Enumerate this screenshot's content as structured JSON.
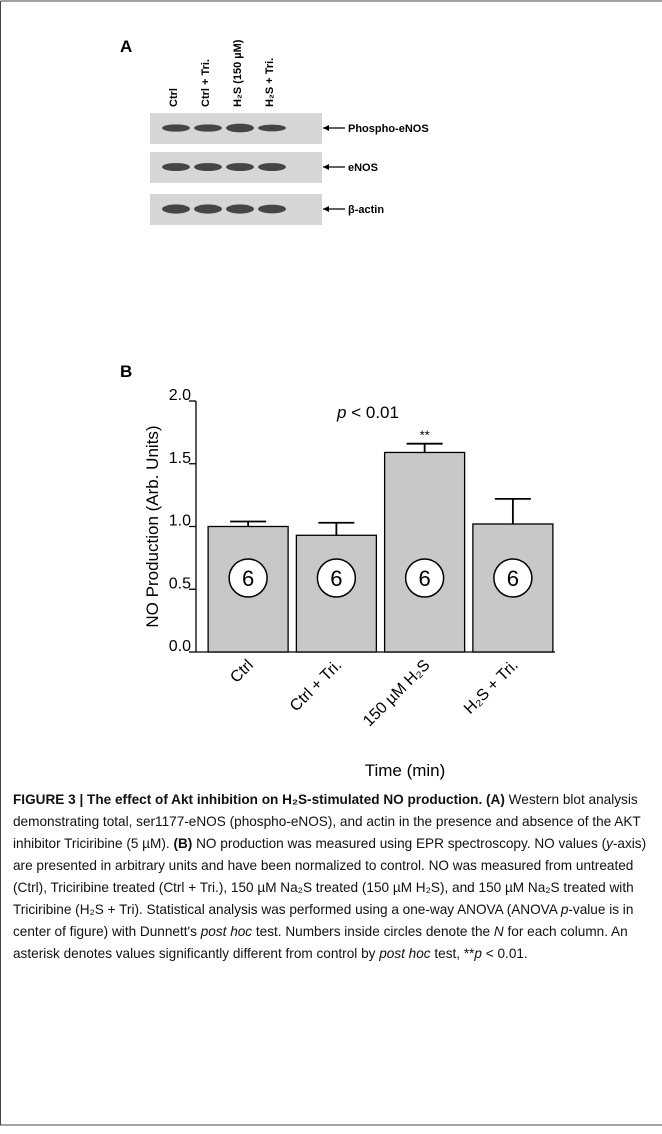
{
  "panel_a": {
    "label": "A",
    "lanes": [
      "Ctrl",
      "Ctrl + Tri.",
      "H₂S (150 µM)",
      "H₂S + Tri."
    ],
    "bands": [
      "Phospho-eNOS",
      "eNOS",
      "β-actin"
    ]
  },
  "chart_data": {
    "type": "bar",
    "panel_label": "B",
    "y_label": "NO Production (Arb. Units)",
    "x_label": "Time (min)",
    "annotation": [
      {
        "text": "p",
        "style": "italic"
      },
      {
        "text": " < 0.01",
        "style": "normal"
      }
    ],
    "categories": [
      "Ctrl",
      "Ctrl + Tri.",
      "150 µM H₂S",
      "H₂S + Tri."
    ],
    "values": [
      1.0,
      0.93,
      1.59,
      1.02
    ],
    "errors": [
      0.04,
      0.1,
      0.07,
      0.2
    ],
    "n": [
      6,
      6,
      6,
      6
    ],
    "significance": [
      null,
      null,
      "**",
      null
    ],
    "color": "#c8c8c8",
    "ylim": [
      0,
      2
    ],
    "yticks": [
      {
        "value": 0,
        "label": "0.0"
      },
      {
        "value": 0.5,
        "label": "0.5"
      },
      {
        "value": 1,
        "label": "1.0"
      },
      {
        "value": 1.5,
        "label": "1.5"
      },
      {
        "value": 2,
        "label": "2.0"
      }
    ]
  },
  "caption": {
    "runs": [
      {
        "text": "FIGURE 3 | The effect of Akt inhibition on H₂S-stimulated NO production. (A)",
        "style": "bold"
      },
      {
        "text": " Western blot analysis demonstrating total, ser1177-eNOS (phospho-eNOS), and actin in the presence and absence of the AKT inhibitor Triciribine (5 µM). ",
        "style": "normal"
      },
      {
        "text": "(B)",
        "style": "bold"
      },
      {
        "text": " NO production was measured using EPR spectroscopy. NO values (",
        "style": "normal"
      },
      {
        "text": "y",
        "style": "italic"
      },
      {
        "text": "-axis) are presented in arbitrary units and have been normalized to control. NO was measured from untreated (Ctrl), Triciribine treated (Ctrl + Tri.), 150 µM Na₂S treated (150 µM H₂S), and 150 µM Na₂S treated with Triciribine (H₂S + Tri). Statistical analysis was performed using a one-way ANOVA (ANOVA ",
        "style": "normal"
      },
      {
        "text": "p",
        "style": "italic"
      },
      {
        "text": "-value is in center of figure) with Dunnett's ",
        "style": "normal"
      },
      {
        "text": "post hoc",
        "style": "italic"
      },
      {
        "text": " test. Numbers inside circles denote the ",
        "style": "normal"
      },
      {
        "text": "N",
        "style": "italic"
      },
      {
        "text": " for each column. An asterisk denotes values significantly different from control by ",
        "style": "normal"
      },
      {
        "text": "post hoc",
        "style": "italic"
      },
      {
        "text": " test, **",
        "style": "normal"
      },
      {
        "text": "p",
        "style": "italic"
      },
      {
        "text": " < 0.01.",
        "style": "normal"
      }
    ]
  }
}
